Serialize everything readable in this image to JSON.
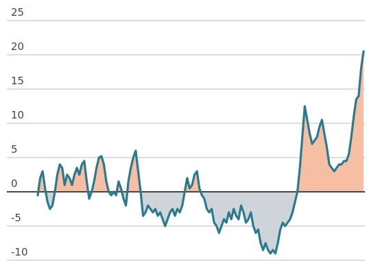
{
  "chart_data": {
    "type": "area",
    "title": "",
    "xlabel": "",
    "ylabel": "",
    "ylim": [
      -10,
      25
    ],
    "yticks": [
      25,
      20,
      15,
      10,
      5,
      0,
      -5,
      -10
    ],
    "grid": true,
    "colors": {
      "line": "#2a7a8f",
      "positive_fill": "#f6bfa3",
      "negative_fill": "#cfd4db",
      "zero_line": "#444444",
      "grid": "#bdbdbd"
    },
    "series": [
      {
        "values": [
          -0.5,
          2.0,
          3.0,
          0.5,
          -1.5,
          -2.5,
          -2.0,
          0.0,
          2.5,
          4.0,
          3.5,
          1.0,
          2.5,
          2.0,
          1.0,
          2.5,
          3.5,
          2.5,
          4.0,
          4.5,
          1.5,
          -1.0,
          0.0,
          1.5,
          3.5,
          5.0,
          5.2,
          4.0,
          1.5,
          0.0,
          -0.5,
          0.0,
          -0.5,
          1.5,
          0.5,
          -1.0,
          -2.0,
          1.5,
          3.5,
          5.0,
          6.0,
          3.0,
          0.0,
          -3.5,
          -3.0,
          -2.0,
          -2.5,
          -3.0,
          -2.5,
          -3.5,
          -3.0,
          -4.0,
          -5.0,
          -4.0,
          -3.0,
          -2.5,
          -3.5,
          -2.5,
          -3.0,
          -2.0,
          0.0,
          2.0,
          0.5,
          1.0,
          2.5,
          3.0,
          0.5,
          -0.5,
          -1.0,
          -2.5,
          -3.0,
          -2.5,
          -4.5,
          -5.0,
          -6.0,
          -5.0,
          -4.0,
          -4.5,
          -3.0,
          -4.0,
          -2.5,
          -3.5,
          -4.0,
          -2.0,
          -3.0,
          -4.5,
          -4.0,
          -3.0,
          -5.0,
          -6.0,
          -5.5,
          -7.5,
          -8.5,
          -7.5,
          -8.5,
          -9.0,
          -8.5,
          -9.0,
          -7.5,
          -5.5,
          -4.5,
          -5.0,
          -4.5,
          -4.0,
          -3.0,
          -1.5,
          0.0,
          3.5,
          8.0,
          12.5,
          10.5,
          8.5,
          7.0,
          7.5,
          8.0,
          9.5,
          10.5,
          8.5,
          6.5,
          4.0,
          3.5,
          3.0,
          3.5,
          4.0,
          4.0,
          4.5,
          4.5,
          5.5,
          8.0,
          11.0,
          13.5,
          14.0,
          18.0,
          20.5
        ]
      }
    ]
  }
}
